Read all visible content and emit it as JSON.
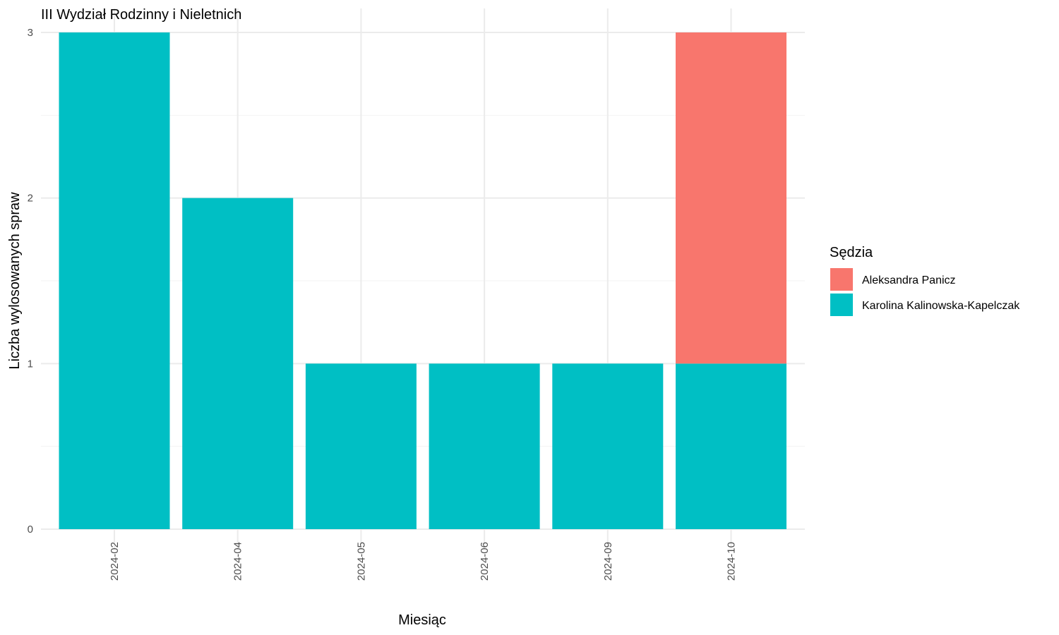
{
  "chart_data": {
    "type": "bar",
    "stacked": true,
    "title": "III Wydział Rodzinny i Nieletnich",
    "xlabel": "Miesiąc",
    "ylabel": "Liczba wylosowanych spraw",
    "categories": [
      "2024-02",
      "2024-04",
      "2024-05",
      "2024-06",
      "2024-09",
      "2024-10"
    ],
    "ylim": [
      0,
      3
    ],
    "yticks": [
      0,
      1,
      2,
      3
    ],
    "grid": true,
    "legend": {
      "title": "Sędzia",
      "placement": "right"
    },
    "series": [
      {
        "name": "Karolina Kalinowska-Kapelczak",
        "color": "#00BFC4",
        "values": [
          3,
          2,
          1,
          1,
          1,
          1
        ]
      },
      {
        "name": "Aleksandra Panicz",
        "color": "#F8766D",
        "values": [
          0,
          0,
          0,
          0,
          0,
          2
        ]
      }
    ],
    "legend_order": [
      "Aleksandra Panicz",
      "Karolina Kalinowska-Kapelczak"
    ]
  }
}
